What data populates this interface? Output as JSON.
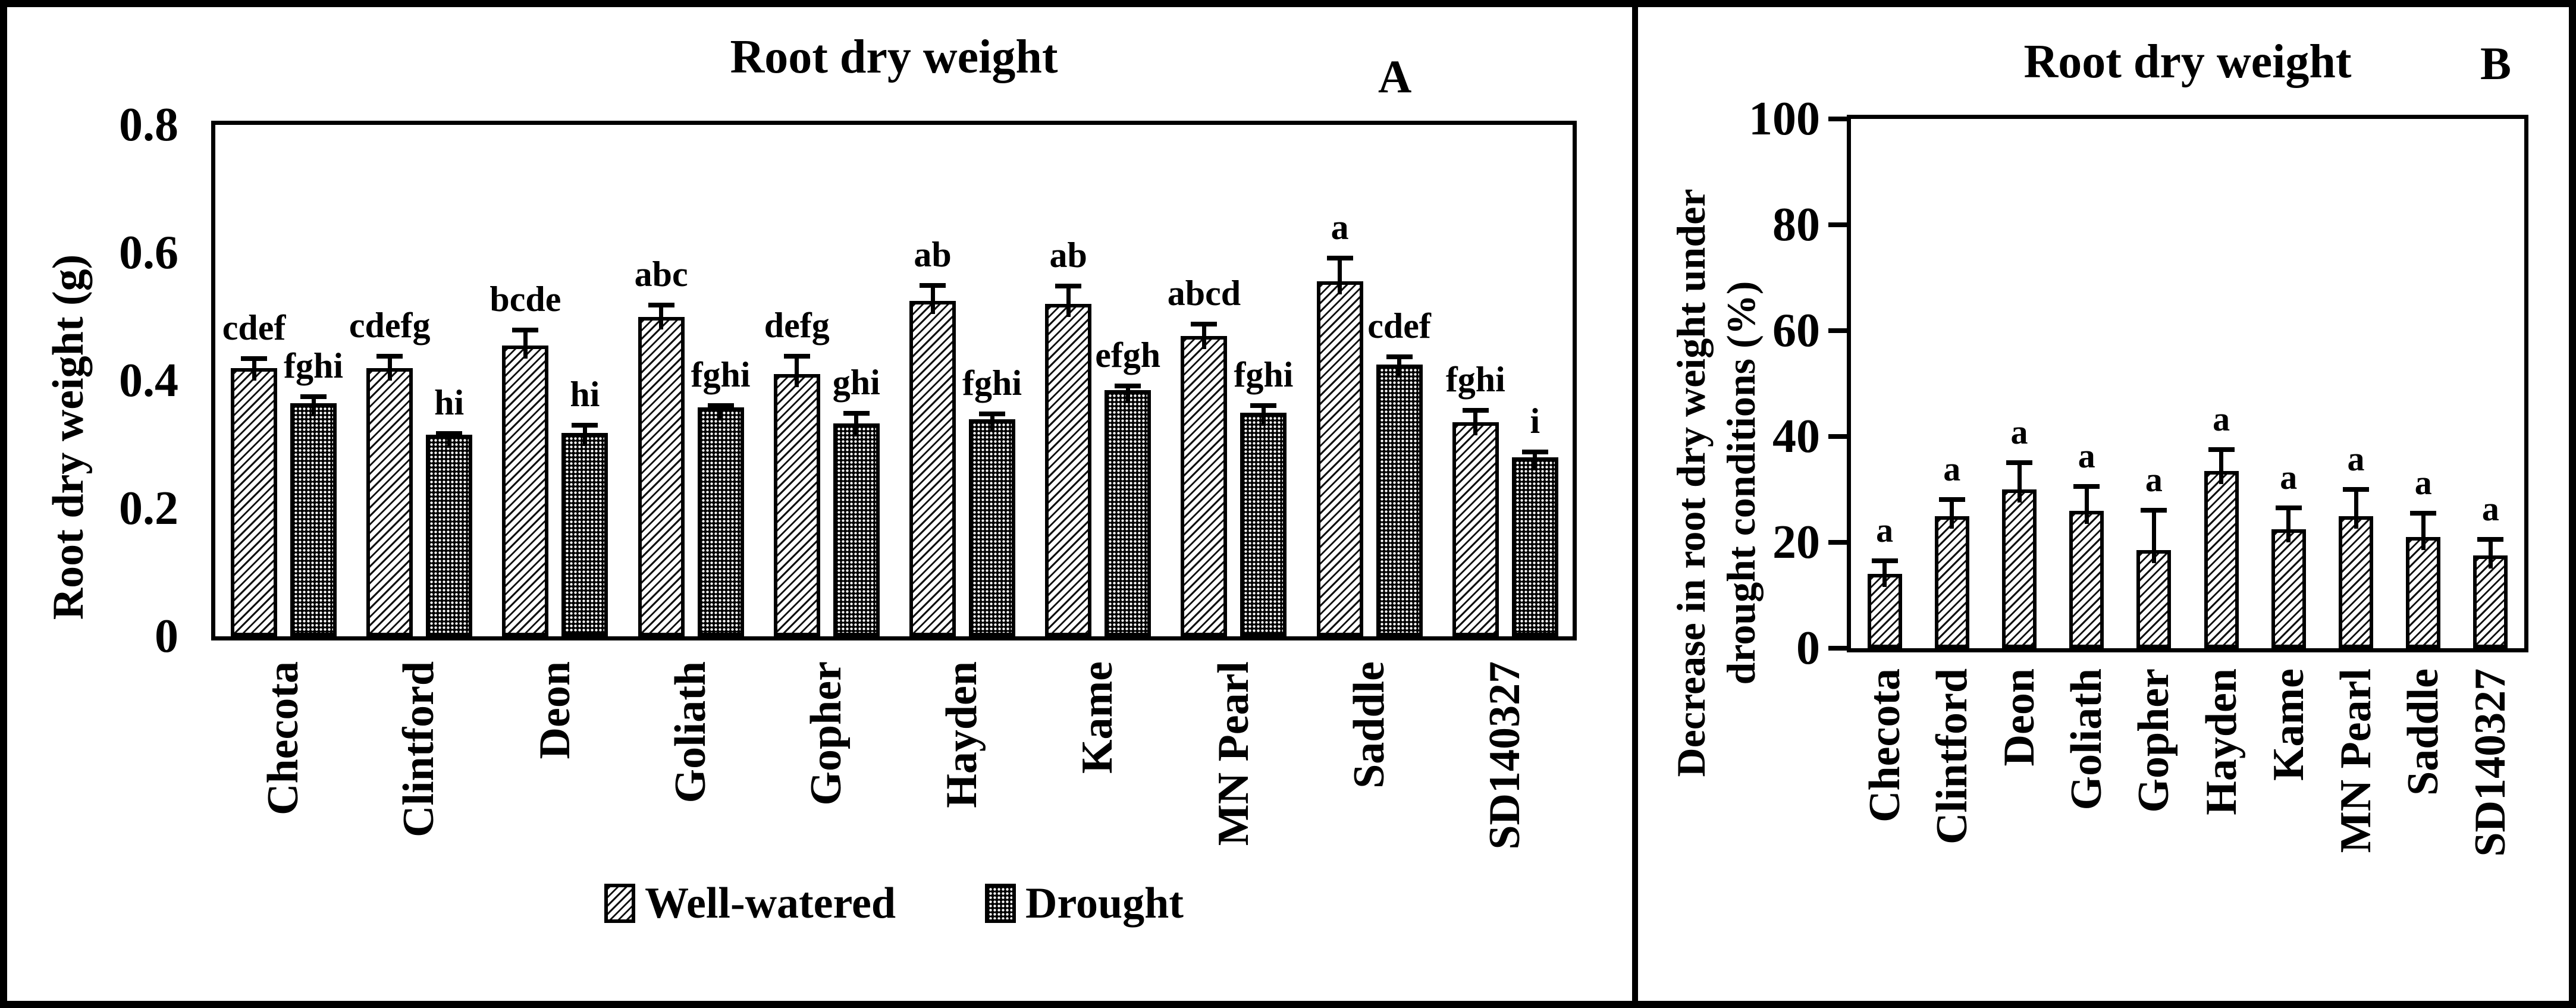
{
  "figure": {
    "background": "#ffffff",
    "frame_color": "#000000"
  },
  "chart_data": [
    {
      "type": "bar",
      "panel_letter": "A",
      "title": "Root dry weight",
      "ylabel": "Root dry weight (g)",
      "ylim": [
        0,
        0.8
      ],
      "yticks": [
        "0",
        "0.2",
        "0.4",
        "0.6",
        "0.8"
      ],
      "grid": "off",
      "categories": [
        "Checota",
        "Clintford",
        "Deon",
        "Goliath",
        "Gopher",
        "Hayden",
        "Kame",
        "MN Pearl",
        "Saddle",
        "SD140327"
      ],
      "series": [
        {
          "name": "Well-watered",
          "pattern": "diagonal-hatch",
          "values": [
            0.42,
            0.42,
            0.455,
            0.5,
            0.41,
            0.525,
            0.52,
            0.47,
            0.555,
            0.335
          ],
          "errors": [
            0.018,
            0.022,
            0.028,
            0.022,
            0.032,
            0.028,
            0.032,
            0.022,
            0.04,
            0.022
          ],
          "letters": [
            "cdef",
            "cdefg",
            "bcde",
            "abc",
            "defg",
            "ab",
            "ab",
            "abcd",
            "a",
            "fghi"
          ]
        },
        {
          "name": "Drought",
          "pattern": "black-white-dots",
          "values": [
            0.365,
            0.315,
            0.318,
            0.358,
            0.333,
            0.34,
            0.385,
            0.35,
            0.425,
            0.28
          ],
          "errors": [
            0.014,
            0.006,
            0.016,
            0.007,
            0.02,
            0.012,
            0.01,
            0.015,
            0.016,
            0.012
          ],
          "letters": [
            "fghi",
            "hi",
            "hi",
            "fghi",
            "ghi",
            "fghi",
            "efgh",
            "fghi",
            "cdef",
            "i"
          ]
        }
      ],
      "legend": {
        "position": "bottom",
        "items": [
          "Well-watered",
          "Drought"
        ]
      }
    },
    {
      "type": "bar",
      "panel_letter": "B",
      "title": "Root dry weight",
      "ylabel_lines": [
        "Decrease in root dry weight under",
        "drought conditions (%)"
      ],
      "ylim": [
        0,
        100
      ],
      "yticks": [
        "0",
        "20",
        "40",
        "60",
        "80",
        "100"
      ],
      "grid": "off",
      "categories": [
        "Checota",
        "Clintford",
        "Deon",
        "Goliath",
        "Gopher",
        "Hayden",
        "Kame",
        "MN Pearl",
        "Saddle",
        "SD140327"
      ],
      "series": [
        {
          "pattern": "diagonal-hatch",
          "values": [
            14,
            25,
            30,
            26,
            18.5,
            33.5,
            22.5,
            25,
            21,
            17.5
          ],
          "errors": [
            3,
            3.5,
            5.5,
            5,
            8,
            4.5,
            4.5,
            5.5,
            5,
            3.5
          ],
          "letters": [
            "a",
            "a",
            "a",
            "a",
            "a",
            "a",
            "a",
            "a",
            "a",
            "a"
          ]
        }
      ]
    }
  ]
}
